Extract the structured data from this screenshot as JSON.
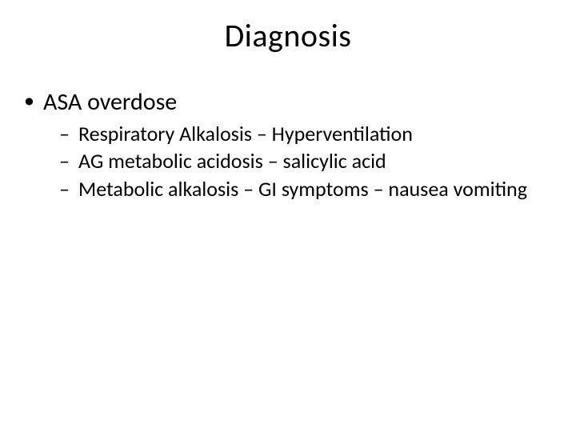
{
  "slide": {
    "title": "Diagnosis",
    "background_color": "#ffffff",
    "text_color": "#000000",
    "title_fontsize": 40,
    "level1_fontsize": 30,
    "level2_fontsize": 26,
    "bullets": {
      "level1": [
        {
          "text": "ASA overdose",
          "children": [
            "Respiratory Alkalosis – Hyperventilation",
            "AG metabolic acidosis – salicylic acid",
            "Metabolic alkalosis – GI symptoms – nausea vomiting"
          ]
        }
      ]
    }
  }
}
